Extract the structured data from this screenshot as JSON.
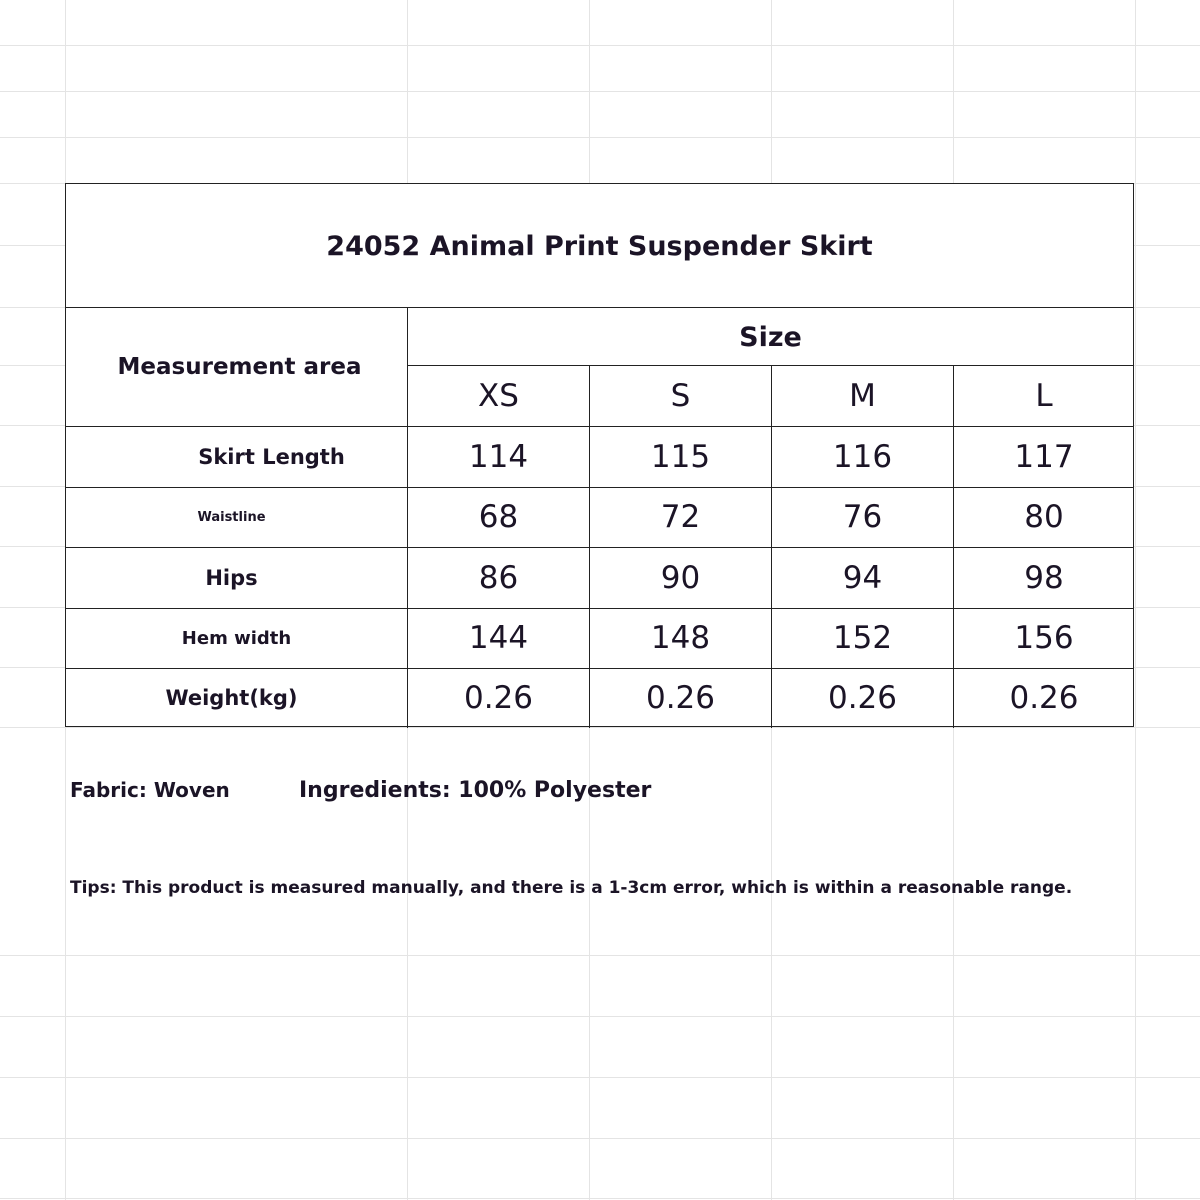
{
  "title": "24052 Animal Print Suspender Skirt",
  "header": {
    "measurement_area": "Measurement area",
    "size": "Size",
    "sizes": [
      "XS",
      "S",
      "M",
      "L"
    ]
  },
  "rows": [
    {
      "label": "Skirt Length",
      "values": [
        "114",
        "115",
        "116",
        "117"
      ]
    },
    {
      "label": "Waistline",
      "values": [
        "68",
        "72",
        "76",
        "80"
      ]
    },
    {
      "label": "Hips",
      "values": [
        "86",
        "90",
        "94",
        "98"
      ]
    },
    {
      "label": "Hem width",
      "values": [
        "144",
        "148",
        "152",
        "156"
      ]
    },
    {
      "label": "Weight(kg)",
      "values": [
        "0.26",
        "0.26",
        "0.26",
        "0.26"
      ]
    }
  ],
  "fabric": "Fabric: Woven",
  "ingredients": "Ingredients: 100% Polyester",
  "tips": "Tips: This product is measured manually, and there is a 1-3cm error, which is within a reasonable range."
}
